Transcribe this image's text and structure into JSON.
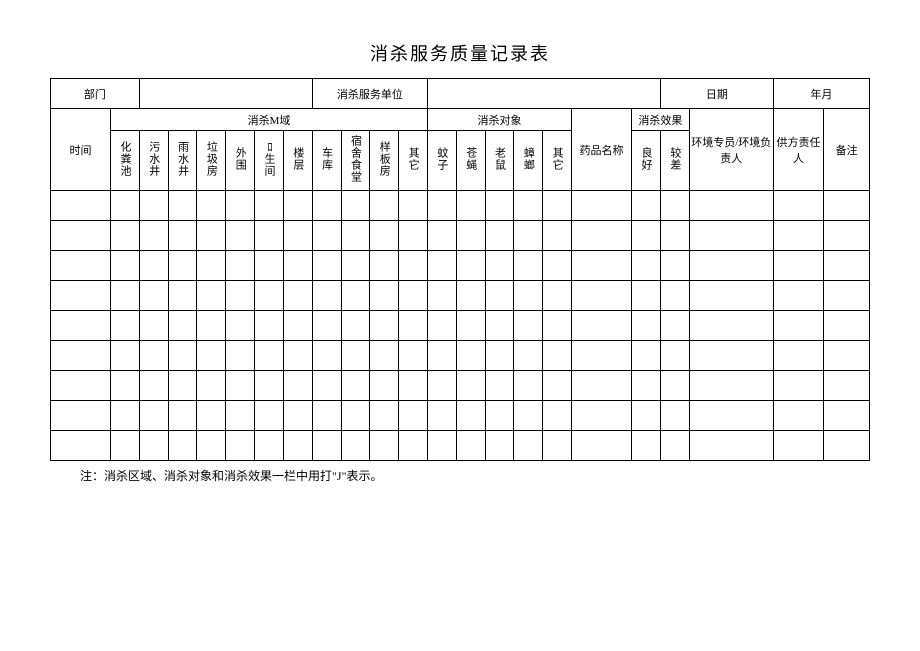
{
  "title": "消杀服务质量记录表",
  "info_row": {
    "dept_label": "部门",
    "dept_value": "",
    "unit_label": "消杀服务单位",
    "unit_value": "",
    "date_label": "日期",
    "date_value": "年月"
  },
  "headers": {
    "time": "时间",
    "area_group": "消杀M域",
    "target_group": "消杀对象",
    "drug_name": "药品名称",
    "effect_group": "消杀效果",
    "env_person": "环境专员/环境负责人",
    "supplier_person": "供方责任人",
    "remark": "备注",
    "area_cols": [
      "化粪池",
      "污水井",
      "雨水井",
      "垃圾房",
      "外围",
      "ﾛ生间",
      "楼层",
      "车库",
      "宿舍食堂",
      "样板房",
      "其它"
    ],
    "target_cols": [
      "蚊子",
      "苍蝇",
      "老鼠",
      "蟑螂",
      "其它"
    ],
    "effect_cols": [
      "良好",
      "较差"
    ]
  },
  "footnote": "注：消杀区域、消杀对象和消杀效果一栏中用打\"J\"表示。",
  "data_row_count": 9,
  "colors": {
    "border": "#000000",
    "background": "#ffffff",
    "text": "#000000"
  }
}
